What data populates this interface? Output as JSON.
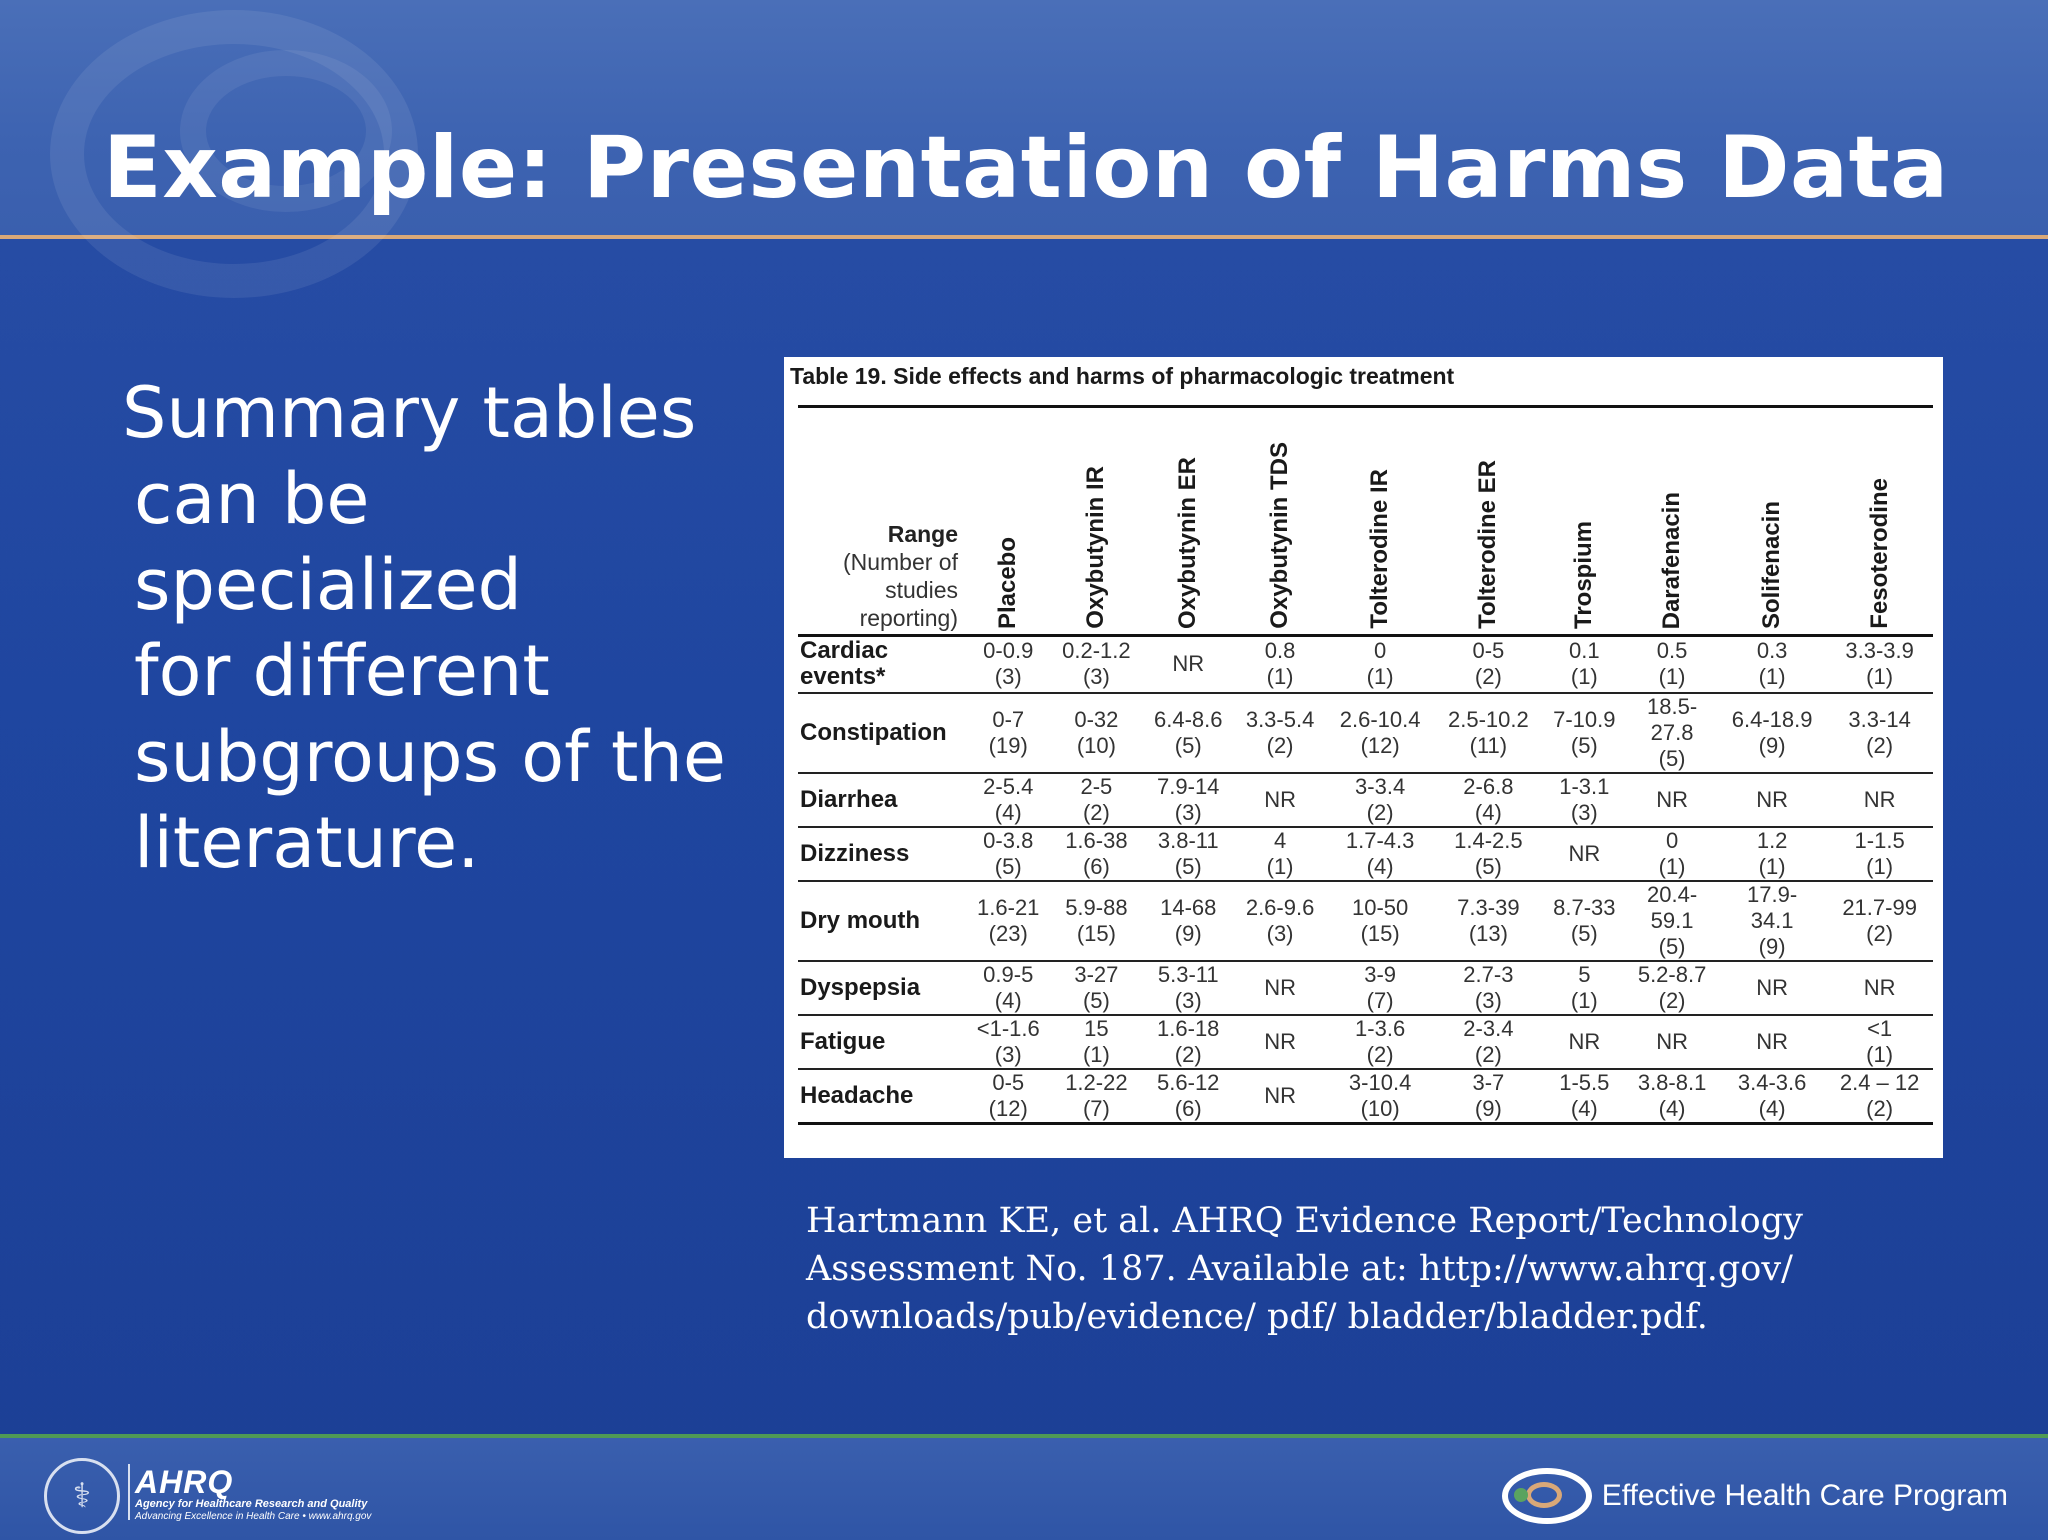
{
  "slide": {
    "title": "Example: Presentation of Harms Data",
    "body_lines": [
      "Summary tables",
      "can be specialized",
      "for different",
      "subgroups of the",
      "literature."
    ]
  },
  "table": {
    "caption": "Table 19.  Side effects  and harms of pharmacologic  treatment",
    "range_header": {
      "bold": "Range",
      "rest": [
        "(Number of",
        "studies",
        "reporting)"
      ]
    },
    "columns": [
      "Placebo",
      "Oxybutynin IR",
      "Oxybutynin ER",
      "Oxybutynin TDS",
      "Tolterodine IR",
      "Tolterodine ER",
      "Trospium",
      "Darafenacin",
      "Solifenacin",
      "Fesoterodine"
    ],
    "rows": [
      {
        "label": "Cardiac events*",
        "cells": [
          "0-0.9\n(3)",
          "0.2-1.2\n(3)",
          "NR",
          "0.8\n(1)",
          "0\n(1)",
          "0-5\n(2)",
          "0.1\n(1)",
          "0.5\n(1)",
          "0.3\n(1)",
          "3.3-3.9\n(1)"
        ]
      },
      {
        "label": "Constipation",
        "cells": [
          "0-7\n(19)",
          "0-32\n(10)",
          "6.4-8.6\n(5)",
          "3.3-5.4\n(2)",
          "2.6-10.4\n(12)",
          "2.5-10.2\n(11)",
          "7-10.9\n(5)",
          "18.5-\n27.8\n(5)",
          "6.4-18.9\n(9)",
          "3.3-14\n(2)"
        ]
      },
      {
        "label": "Diarrhea",
        "cells": [
          "2-5.4\n(4)",
          "2-5\n(2)",
          "7.9-14\n(3)",
          "NR",
          "3-3.4\n(2)",
          "2-6.8\n(4)",
          "1-3.1\n(3)",
          "NR",
          "NR",
          "NR"
        ]
      },
      {
        "label": "Dizziness",
        "cells": [
          "0-3.8\n(5)",
          "1.6-38\n(6)",
          "3.8-11\n(5)",
          "4\n(1)",
          "1.7-4.3\n(4)",
          "1.4-2.5\n(5)",
          "NR",
          "0\n(1)",
          "1.2\n(1)",
          "1-1.5\n(1)"
        ]
      },
      {
        "label": "Dry mouth",
        "cells": [
          "1.6-21\n(23)",
          "5.9-88\n(15)",
          "14-68\n(9)",
          "2.6-9.6\n(3)",
          "10-50\n(15)",
          "7.3-39\n(13)",
          "8.7-33\n(5)",
          "20.4-\n59.1\n(5)",
          "17.9-\n34.1\n(9)",
          "21.7-99\n(2)"
        ]
      },
      {
        "label": "Dyspepsia",
        "cells": [
          "0.9-5\n(4)",
          "3-27\n(5)",
          "5.3-11\n(3)",
          "NR",
          "3-9\n(7)",
          "2.7-3\n(3)",
          "5\n(1)",
          "5.2-8.7\n(2)",
          "NR",
          "NR"
        ]
      },
      {
        "label": "Fatigue",
        "cells": [
          "<1-1.6\n(3)",
          "15\n(1)",
          "1.6-18\n(2)",
          "NR",
          "1-3.6\n(2)",
          "2-3.4\n(2)",
          "NR",
          "NR",
          "NR",
          "<1\n(1)"
        ]
      },
      {
        "label": "Headache",
        "cells": [
          "0-5\n(12)",
          "1.2-22\n(7)",
          "5.6-12\n(6)",
          "NR",
          "3-10.4\n(10)",
          "3-7\n(9)",
          "1-5.5\n(4)",
          "3.8-8.1\n(4)",
          "3.4-3.6\n(4)",
          "2.4 – 12\n(2)"
        ]
      }
    ]
  },
  "citation": {
    "text": "Hartmann KE, et al. AHRQ Evidence Report/Technology Assessment No. 187. Available at: ",
    "link": "http://www.ahrq.gov/ downloads/pub/evidence/ pdf/ bladder/bladder.pdf."
  },
  "footer": {
    "ahrq_mark": "AHRQ",
    "ahrq_tagline": "Agency for Healthcare Research and Quality",
    "ahrq_sub": "Advancing Excellence in Health Care  •  www.ahrq.gov",
    "ehc_text": "Effective Health Care Program"
  },
  "colors": {
    "background": "#1f46a0",
    "header": "#3d63b1",
    "header_rule": "#d9a878",
    "footer_rule": "#4f9a55"
  }
}
